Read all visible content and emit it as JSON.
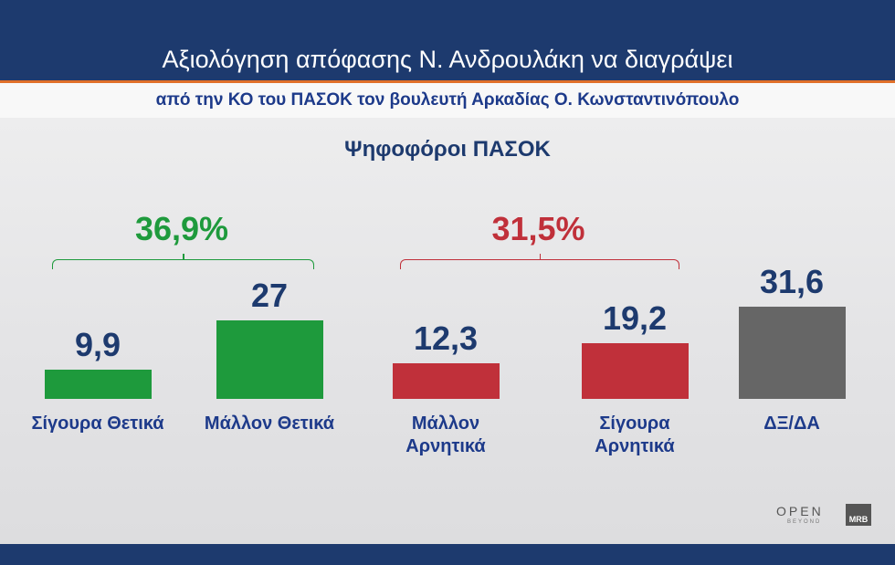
{
  "chart_data": {
    "type": "bar",
    "title": "Αξιολόγηση απόφασης Ν. Ανδρουλάκη να διαγράψει",
    "subtitle": "από την ΚΟ του ΠΑΣΟΚ τον βουλευτή Αρκαδίας Ο. Κωνσταντινόπουλο",
    "chart_title": "Ψηφοφόροι ΠΑΣΟΚ",
    "categories": [
      "Σίγουρα Θετικά",
      "Μάλλον Θετικά",
      "Μάλλον Αρνητικά",
      "Σίγουρα Αρνητικά",
      "ΔΞ/ΔΑ"
    ],
    "values": [
      9.9,
      27,
      12.3,
      19.2,
      31.6
    ],
    "value_labels": [
      "9,9",
      "27",
      "12,3",
      "19,2",
      "31,6"
    ],
    "colors": [
      "#1e9a3c",
      "#1e9a3c",
      "#c0303a",
      "#c0303a",
      "#666666"
    ],
    "annotations": [
      {
        "text": "36,9%",
        "color": "#1e9a3c"
      },
      {
        "text": "31,5%",
        "color": "#c0303a"
      }
    ]
  },
  "footer": {
    "brand": "OPEN",
    "tagline": "BEYOND",
    "pollster": "MRB"
  }
}
